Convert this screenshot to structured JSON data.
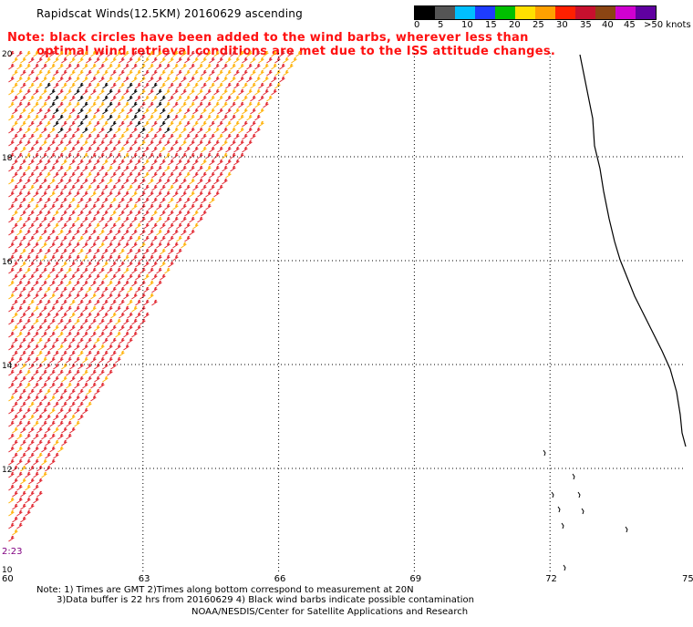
{
  "title": "Rapidscat Winds(12.5KM) 20160629 ascending",
  "note": {
    "line1": "Note: black circles have been added to the wind barbs, wherever less than",
    "line2": "optimal wind retrieval conditions are met due to the ISS attitude changes."
  },
  "legend": {
    "labels": [
      "0",
      "5",
      "10",
      "15",
      "20",
      "25",
      "30",
      "35",
      "40",
      "45",
      ">50 knots"
    ],
    "colors": [
      "#000000",
      "#555555",
      "#00bfff",
      "#1e3cff",
      "#00c000",
      "#ffe000",
      "#ffa000",
      "#ff2000",
      "#c8102e",
      "#8b4513",
      "#d000d0",
      "#6000a0"
    ]
  },
  "axes": {
    "lon_ticks": [
      "60",
      "63",
      "66",
      "69",
      "72",
      "75"
    ],
    "lat_ticks": [
      "20",
      "18",
      "16",
      "14",
      "12",
      "10"
    ]
  },
  "time_label": "2:23",
  "footer": {
    "line1": "Note: 1) Times are GMT 2)Times along bottom correspond to measurement at 20N",
    "line2": "3)Data buffer is 22 hrs from 20160629 4) Black wind barbs indicate possible contamination",
    "line3": "NOAA/NESDIS/Center for Satellite Applications and Research"
  },
  "colors": {
    "note": "#ff1010",
    "grid": "#000000",
    "barb_main": "#e0202a",
    "barb_light": "#ffb000",
    "barb_contam": "#000000",
    "time_label": "#800080"
  }
}
